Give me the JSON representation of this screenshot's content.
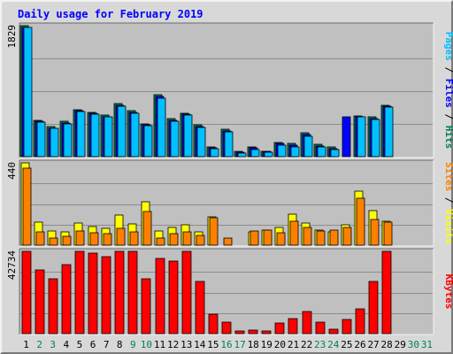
{
  "chart_data": {
    "type": "bar",
    "title": "Daily usage for February 2019",
    "categories": [
      "1",
      "2",
      "3",
      "4",
      "5",
      "6",
      "7",
      "8",
      "9",
      "10",
      "11",
      "12",
      "13",
      "14",
      "15",
      "16",
      "17",
      "18",
      "19",
      "20",
      "21",
      "22",
      "23",
      "24",
      "25",
      "26",
      "27",
      "28",
      "29",
      "30",
      "31"
    ],
    "weekend_days": [
      "2",
      "3",
      "9",
      "10",
      "16",
      "17",
      "23",
      "24",
      "30",
      "31"
    ],
    "colors": {
      "hits": "#00805c",
      "files": "#0000ff",
      "pages": "#00c0ff",
      "visits": "#ffff00",
      "sites": "#ff8000",
      "kbytes": "#ff0000",
      "title": "#0000ff",
      "weekday_label": "#000000",
      "weekend_label": "#00805c",
      "plot_bg": "#c0c0c0"
    },
    "panels": [
      {
        "id": "top",
        "ymax_label": "1829",
        "ylim": [
          0,
          1829
        ],
        "side_label": [
          {
            "text": "Pages",
            "color": "#00c0ff"
          },
          {
            "text": " / ",
            "color": "#000000"
          },
          {
            "text": "Files",
            "color": "#0000ff"
          },
          {
            "text": " / ",
            "color": "#000000"
          },
          {
            "text": "Hits",
            "color": "#00805c"
          }
        ],
        "series": [
          {
            "name": "Hits",
            "color": "#00805c",
            "values": [
              1829,
              510,
              420,
              490,
              660,
              620,
              580,
              740,
              640,
              460,
              860,
              530,
              610,
              440,
              130,
              380,
              70,
              140,
              80,
              200,
              180,
              330,
              170,
              130,
              0,
              570,
              550,
              720,
              0,
              0,
              0
            ]
          },
          {
            "name": "Files",
            "color": "#0000ff",
            "values": [
              1800,
              490,
              400,
              470,
              640,
              600,
              560,
              720,
              620,
              440,
              840,
              510,
              590,
              420,
              120,
              360,
              60,
              120,
              70,
              180,
              160,
              310,
              150,
              110,
              560,
              560,
              530,
              700,
              0,
              0,
              0
            ]
          },
          {
            "name": "Pages",
            "color": "#00c0ff",
            "values": [
              1800,
              480,
              390,
              460,
              630,
              590,
              550,
              700,
              610,
              430,
              820,
              500,
              580,
              410,
              110,
              350,
              50,
              100,
              60,
              160,
              140,
              290,
              140,
              100,
              0,
              550,
              520,
              690,
              0,
              0,
              0
            ]
          }
        ]
      },
      {
        "id": "middle",
        "ymax_label": "440",
        "ylim": [
          0,
          440
        ],
        "side_label": [
          {
            "text": "Sites",
            "color": "#ff8000"
          },
          {
            "text": " / ",
            "color": "#000000"
          },
          {
            "text": "Visits",
            "color": "#ffff00"
          }
        ],
        "series": [
          {
            "name": "Visits",
            "color": "#ffff00",
            "values": [
              440,
              125,
              75,
              70,
              120,
              100,
              90,
              160,
              115,
              230,
              75,
              95,
              110,
              70,
              150,
              0,
              0,
              70,
              80,
              95,
              165,
              120,
              80,
              70,
              110,
              290,
              185,
              130,
              0,
              0,
              0
            ]
          },
          {
            "name": "Sites",
            "color": "#ff8000",
            "values": [
              410,
              70,
              40,
              45,
              75,
              65,
              60,
              90,
              70,
              180,
              40,
              60,
              70,
              50,
              145,
              40,
              0,
              75,
              80,
              65,
              130,
              95,
              75,
              80,
              95,
              250,
              135,
              125,
              0,
              0,
              0
            ]
          }
        ]
      },
      {
        "id": "bottom",
        "ymax_label": "42734",
        "ylim": [
          0,
          42734
        ],
        "side_label": [
          {
            "text": "KBytes",
            "color": "#ff0000"
          }
        ],
        "series": [
          {
            "name": "KBytes",
            "color": "#ff0000",
            "values": [
              42734,
              33000,
              28500,
              36000,
              42734,
              42000,
              40000,
              42734,
              42734,
              28500,
              39000,
              37500,
              42734,
              27000,
              10000,
              6000,
              1500,
              2000,
              1500,
              5500,
              8000,
              11500,
              6000,
              2500,
              7500,
              13000,
              27000,
              42734,
              0,
              0,
              0
            ]
          }
        ]
      }
    ]
  }
}
